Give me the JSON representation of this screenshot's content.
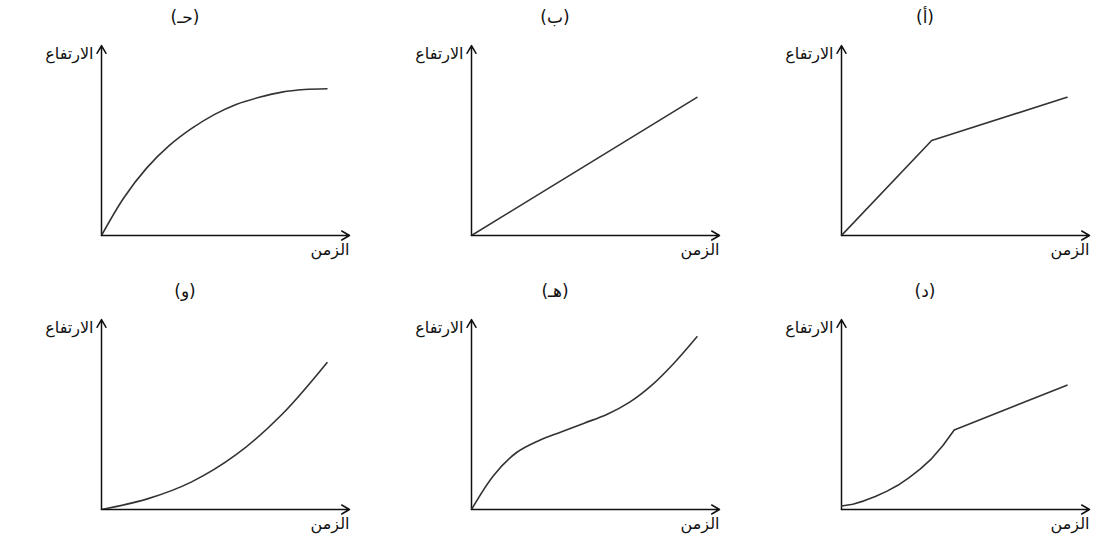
{
  "chart_data": [
    {
      "type": "line",
      "title": "(أ)",
      "x_label": "الزمن",
      "y_label": "الارتفاع",
      "x": [
        0,
        4,
        10
      ],
      "values": [
        0,
        5.5,
        8
      ],
      "xlim": [
        0,
        11
      ],
      "ylim": [
        0,
        11
      ],
      "xticks": [],
      "yticks": [],
      "tick_labels": false,
      "color": "#333333"
    },
    {
      "type": "line",
      "title": "(ب)",
      "x_label": "الزمن",
      "y_label": "الارتفاع",
      "x": [
        0,
        10
      ],
      "values": [
        0,
        8
      ],
      "xlim": [
        0,
        11
      ],
      "ylim": [
        0,
        11
      ],
      "xticks": [],
      "yticks": [],
      "tick_labels": false,
      "color": "#333333"
    },
    {
      "type": "spline",
      "title": "(حـ)",
      "x_label": "الزمن",
      "y_label": "الارتفاع",
      "x": [
        0,
        1,
        2,
        3,
        4,
        5,
        6,
        7,
        8,
        9,
        10
      ],
      "values": [
        0,
        2.2,
        3.9,
        5.2,
        6.2,
        7,
        7.6,
        8,
        8.3,
        8.45,
        8.5
      ],
      "xlim": [
        0,
        11
      ],
      "ylim": [
        0,
        11
      ],
      "xticks": [],
      "yticks": [],
      "tick_labels": false,
      "color": "#333333"
    },
    {
      "type": "line",
      "title": "(د)",
      "x_label": "الزمن",
      "y_label": "الارتفاع",
      "x": [
        0,
        0.5,
        1,
        1.5,
        2,
        2.5,
        3,
        3.5,
        4,
        4.5,
        5,
        10
      ],
      "values": [
        0.2,
        0.3,
        0.5,
        0.75,
        1.05,
        1.4,
        1.85,
        2.35,
        2.95,
        3.7,
        4.6,
        7.2
      ],
      "xlim": [
        0,
        11
      ],
      "ylim": [
        0,
        11
      ],
      "xticks": [],
      "yticks": [],
      "tick_labels": false,
      "color": "#333333"
    },
    {
      "type": "spline",
      "title": "(هـ)",
      "x_label": "الزمن",
      "y_label": "الارتفاع",
      "x": [
        0,
        1,
        2,
        3,
        4,
        5,
        6,
        7,
        8,
        9,
        10
      ],
      "values": [
        0,
        2,
        3.3,
        4,
        4.5,
        5,
        5.5,
        6.2,
        7.2,
        8.5,
        10
      ],
      "xlim": [
        0,
        11
      ],
      "ylim": [
        0,
        11
      ],
      "xticks": [],
      "yticks": [],
      "tick_labels": false,
      "color": "#333333"
    },
    {
      "type": "spline",
      "title": "(و)",
      "x_label": "الزمن",
      "y_label": "الارتفاع",
      "x": [
        0,
        2,
        4,
        6,
        8,
        10
      ],
      "values": [
        0,
        0.6,
        1.6,
        3.2,
        5.5,
        8.5
      ],
      "xlim": [
        0,
        11
      ],
      "ylim": [
        0,
        11
      ],
      "xticks": [],
      "yticks": [],
      "tick_labels": false,
      "color": "#333333"
    }
  ]
}
